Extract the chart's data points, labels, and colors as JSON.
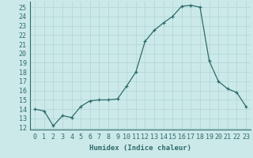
{
  "x": [
    0,
    1,
    2,
    3,
    4,
    5,
    6,
    7,
    8,
    9,
    10,
    11,
    12,
    13,
    14,
    15,
    16,
    17,
    18,
    19,
    20,
    21,
    22,
    23
  ],
  "y": [
    14.0,
    13.8,
    12.2,
    13.3,
    13.1,
    14.3,
    14.9,
    15.0,
    15.0,
    15.1,
    16.5,
    18.0,
    21.3,
    22.5,
    23.3,
    24.0,
    25.1,
    25.2,
    25.0,
    19.2,
    17.0,
    16.2,
    15.8,
    14.3
  ],
  "xlabel": "Humidex (Indice chaleur)",
  "xlim": [
    -0.5,
    23.5
  ],
  "ylim": [
    11.8,
    25.6
  ],
  "yticks": [
    12,
    13,
    14,
    15,
    16,
    17,
    18,
    19,
    20,
    21,
    22,
    23,
    24,
    25
  ],
  "xticks": [
    0,
    1,
    2,
    3,
    4,
    5,
    6,
    7,
    8,
    9,
    10,
    11,
    12,
    13,
    14,
    15,
    16,
    17,
    18,
    19,
    20,
    21,
    22,
    23
  ],
  "line_color": "#2e6b6b",
  "marker": "+",
  "bg_color": "#cce9e9",
  "grid_color": "#aed4d4",
  "label_fontsize": 6.5,
  "tick_fontsize": 6.0
}
